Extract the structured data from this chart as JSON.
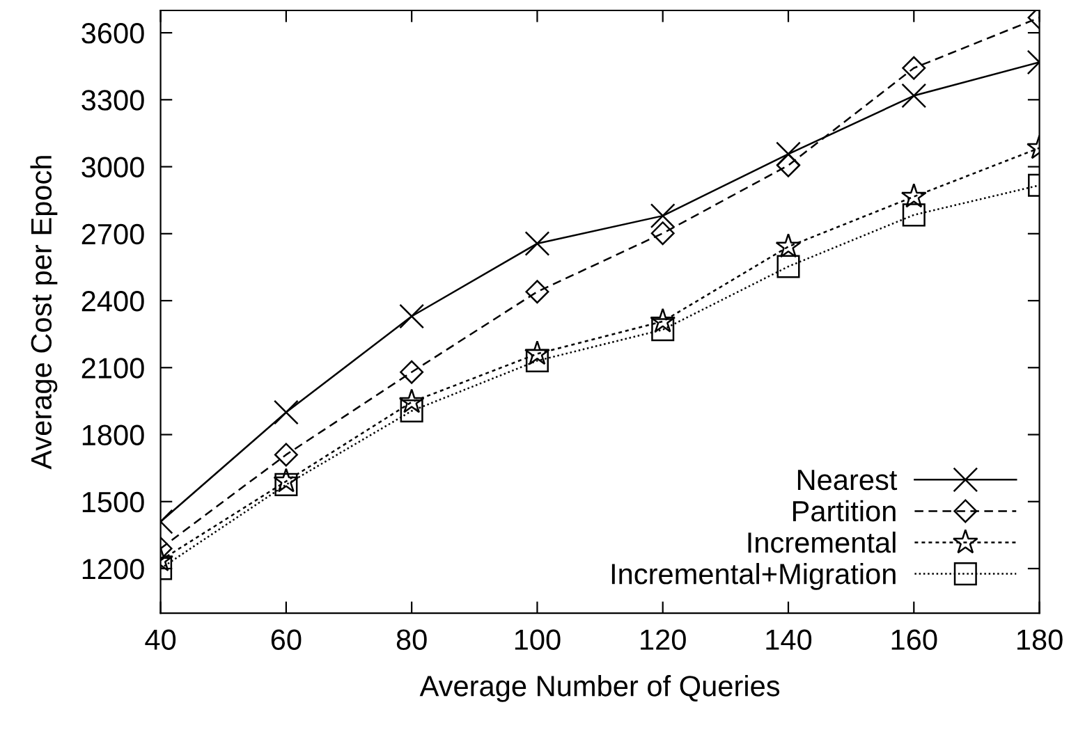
{
  "chart_data": {
    "type": "line",
    "xlabel": "Average Number of Queries",
    "ylabel": "Average Cost per Epoch",
    "x": [
      40,
      60,
      80,
      100,
      120,
      140,
      160,
      180
    ],
    "series": [
      {
        "name": "Nearest",
        "color": "#000000",
        "marker": "cross",
        "line_style": "solid",
        "values": [
          1410,
          1900,
          2330,
          2656,
          2780,
          3057,
          3318,
          3468
        ]
      },
      {
        "name": "Partition",
        "color": "#000000",
        "marker": "diamond",
        "line_style": "dashed",
        "values": [
          1290,
          1710,
          2080,
          2440,
          2702,
          3006,
          3442,
          3668
        ]
      },
      {
        "name": "Incremental",
        "color": "#000000",
        "marker": "star",
        "line_style": "dotted",
        "values": [
          1237,
          1591,
          1946,
          2162,
          2307,
          2642,
          2866,
          3084
        ]
      },
      {
        "name": "Incremental+Migration",
        "color": "#000000",
        "marker": "square",
        "line_style": "dotted",
        "values": [
          1200,
          1576,
          1906,
          2131,
          2270,
          2553,
          2784,
          2917
        ]
      }
    ],
    "xlim": [
      40,
      180
    ],
    "xticks": [
      40,
      60,
      80,
      100,
      120,
      140,
      160,
      180
    ],
    "ylim": [
      1000,
      3700
    ],
    "yticks": [
      1200,
      1500,
      1800,
      2100,
      2400,
      2700,
      3000,
      3300,
      3600
    ],
    "grid": false,
    "legend": "bottom right"
  }
}
